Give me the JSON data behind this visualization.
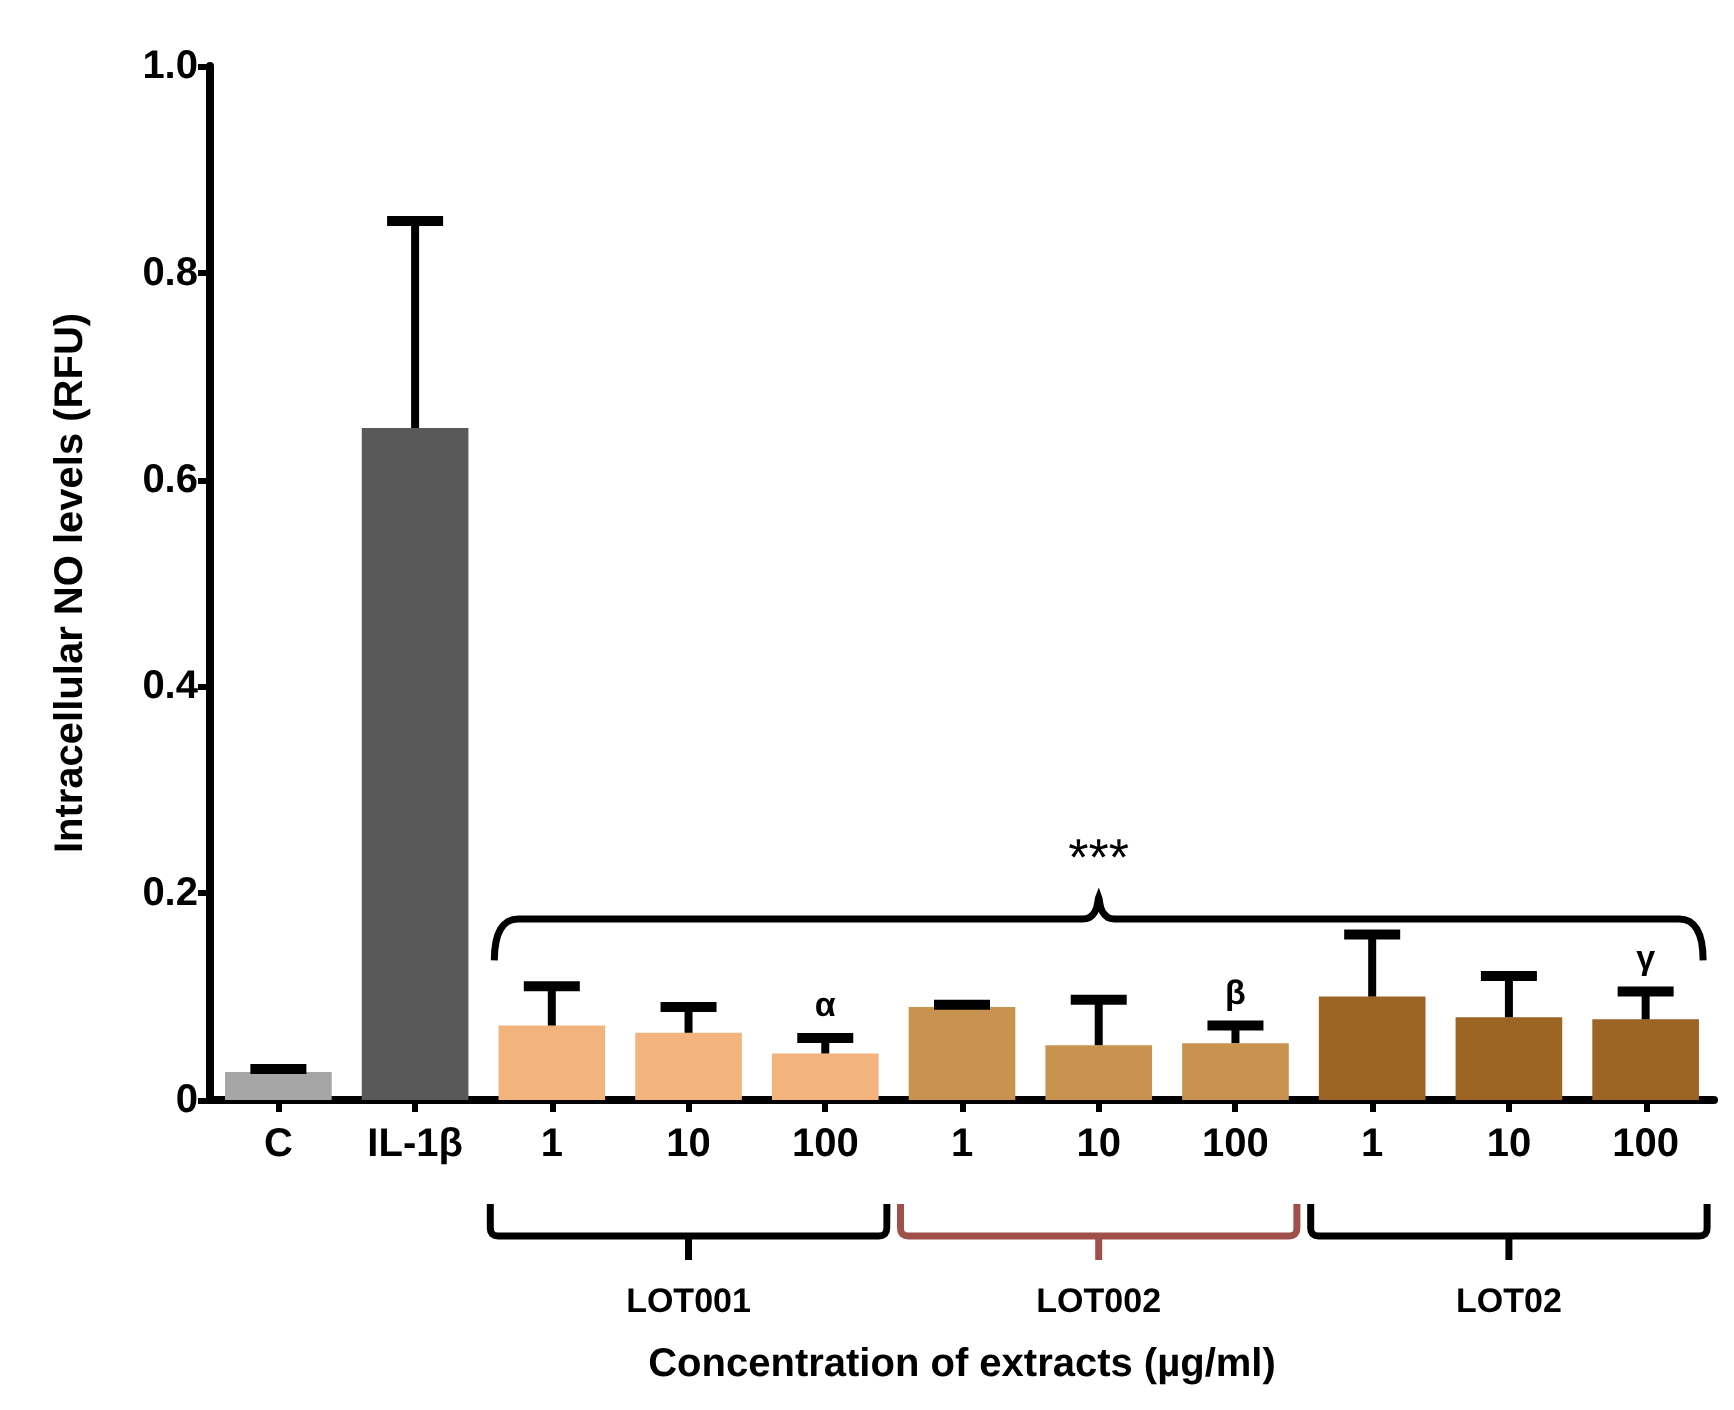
{
  "chart_data": {
    "type": "bar",
    "ylabel": "Intracellular NO levels (RFU)",
    "xlabel": "Concentration of extracts (µg/ml)",
    "categories": [
      "C",
      "IL-1β",
      "1",
      "10",
      "100",
      "1",
      "10",
      "100",
      "1",
      "10",
      "100"
    ],
    "values": [
      0.027,
      0.65,
      0.072,
      0.065,
      0.045,
      0.09,
      0.053,
      0.055,
      0.1,
      0.08,
      0.078
    ],
    "colors": [
      "#a6a6a6",
      "#595959",
      "#f2b47c",
      "#f2b47c",
      "#f2b47c",
      "#c8934e",
      "#c8934e",
      "#c8934e",
      "#9c6524",
      "#9c6524",
      "#9c6524"
    ],
    "errors": [
      [
        0.027,
        0.03
      ],
      [
        0.65,
        0.85
      ],
      [
        0.072,
        0.11
      ],
      [
        0.065,
        0.09
      ],
      [
        0.045,
        0.06
      ],
      [
        0.09,
        0.092
      ],
      [
        0.053,
        0.097
      ],
      [
        0.055,
        0.072
      ],
      [
        0.1,
        0.16
      ],
      [
        0.08,
        0.12
      ],
      [
        0.078,
        0.105
      ]
    ],
    "value_labels": [
      null,
      null,
      null,
      null,
      "α",
      null,
      null,
      "β",
      null,
      null,
      "γ"
    ],
    "annotations": [
      "***",
      "LOT001",
      "LOT002",
      "LOT02"
    ],
    "ylim": [
      0,
      1.0
    ],
    "yticks": [
      0,
      0.2,
      0.4,
      0.6,
      0.8,
      {
        "value": 1.0,
        "label": "1.0"
      }
    ],
    "grid": false
  }
}
